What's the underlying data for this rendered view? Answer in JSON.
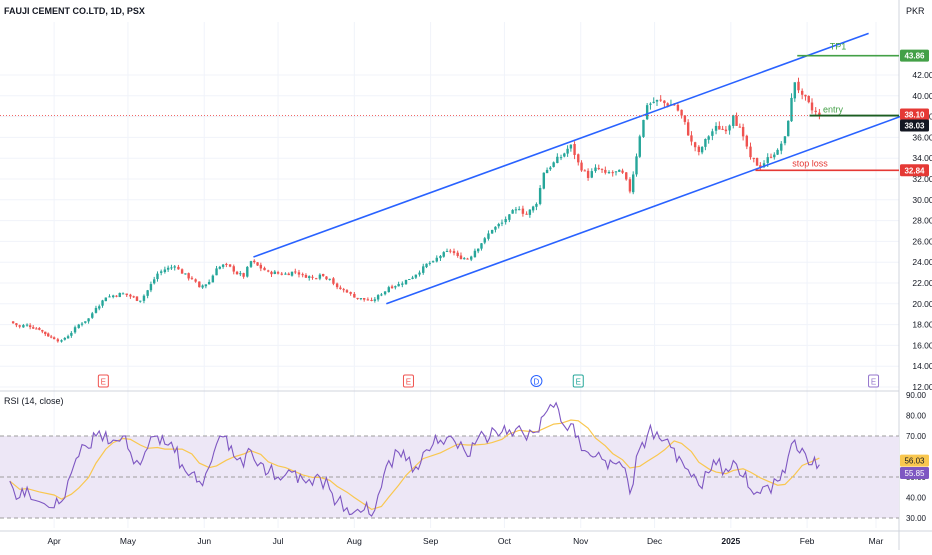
{
  "header": {
    "symbol_line": "FAUJI CEMENT CO.LTD, 1D, PSX",
    "currency": "PKR"
  },
  "rsi_panel": {
    "label": "RSI (14, close)"
  },
  "colors": {
    "up": "#26a69a",
    "down": "#ef5350",
    "channel": "#2962ff",
    "tp": "#43a047",
    "stop": "#e53935",
    "entry_line": "#1b5e20",
    "rsi_line": "#7e57c2",
    "rsi_ma": "#f9c74f",
    "rsi_band": "#ede7f6",
    "grid": "#f0f3fa",
    "axis_text": "#131722"
  },
  "chart_data": [
    {
      "type": "candlestick",
      "title": "FAUJI CEMENT CO.LTD, 1D, PSX",
      "y_unit": "PKR",
      "ylim": [
        12,
        46
      ],
      "y_ticks": [
        12,
        14,
        16,
        18,
        20,
        22,
        24,
        26,
        28,
        30,
        32,
        34,
        36,
        38,
        40,
        42
      ],
      "x_ticks": [
        "Apr",
        "May",
        "Jun",
        "Jul",
        "Aug",
        "Sep",
        "Oct",
        "Nov",
        "Dec",
        "2025",
        "Feb",
        "Mar"
      ],
      "price_approx": [
        [
          "2024-03-14",
          18.3
        ],
        [
          "2024-03-18",
          17.8
        ],
        [
          "2024-03-21",
          18.0
        ],
        [
          "2024-03-26",
          17.5
        ],
        [
          "2024-04-01",
          16.6
        ],
        [
          "2024-04-04",
          16.5
        ],
        [
          "2024-04-08",
          17.2
        ],
        [
          "2024-04-11",
          18.0
        ],
        [
          "2024-04-15",
          18.6
        ],
        [
          "2024-04-18",
          19.6
        ],
        [
          "2024-04-22",
          20.6
        ],
        [
          "2024-04-25",
          20.8
        ],
        [
          "2024-04-29",
          21.0
        ],
        [
          "2024-05-02",
          20.7
        ],
        [
          "2024-05-06",
          20.3
        ],
        [
          "2024-05-09",
          21.3
        ],
        [
          "2024-05-13",
          22.9
        ],
        [
          "2024-05-16",
          23.3
        ],
        [
          "2024-05-20",
          23.6
        ],
        [
          "2024-05-23",
          22.9
        ],
        [
          "2024-05-27",
          22.4
        ],
        [
          "2024-05-30",
          21.6
        ],
        [
          "2024-06-03",
          22.1
        ],
        [
          "2024-06-06",
          23.4
        ],
        [
          "2024-06-10",
          23.8
        ],
        [
          "2024-06-13",
          23.1
        ],
        [
          "2024-06-17",
          22.6
        ],
        [
          "2024-06-20",
          24.1
        ],
        [
          "2024-06-24",
          23.4
        ],
        [
          "2024-06-27",
          23.1
        ],
        [
          "2024-07-01",
          22.9
        ],
        [
          "2024-07-04",
          22.9
        ],
        [
          "2024-07-08",
          23.1
        ],
        [
          "2024-07-11",
          22.8
        ],
        [
          "2024-07-15",
          22.5
        ],
        [
          "2024-07-18",
          22.8
        ],
        [
          "2024-07-22",
          22.4
        ],
        [
          "2024-07-25",
          21.6
        ],
        [
          "2024-07-29",
          21.1
        ],
        [
          "2024-08-01",
          20.6
        ],
        [
          "2024-08-05",
          20.4
        ],
        [
          "2024-08-08",
          20.3
        ],
        [
          "2024-08-12",
          20.9
        ],
        [
          "2024-08-15",
          21.6
        ],
        [
          "2024-08-19",
          21.9
        ],
        [
          "2024-08-22",
          22.3
        ],
        [
          "2024-08-26",
          22.8
        ],
        [
          "2024-08-29",
          23.6
        ],
        [
          "2024-09-02",
          24.1
        ],
        [
          "2024-09-05",
          24.6
        ],
        [
          "2024-09-09",
          25.1
        ],
        [
          "2024-09-12",
          24.6
        ],
        [
          "2024-09-16",
          24.3
        ],
        [
          "2024-09-19",
          25.1
        ],
        [
          "2024-09-23",
          26.3
        ],
        [
          "2024-09-26",
          27.1
        ],
        [
          "2024-09-30",
          27.8
        ],
        [
          "2024-10-03",
          28.6
        ],
        [
          "2024-10-07",
          29.1
        ],
        [
          "2024-10-10",
          28.6
        ],
        [
          "2024-10-14",
          29.6
        ],
        [
          "2024-10-17",
          32.6
        ],
        [
          "2024-10-21",
          33.6
        ],
        [
          "2024-10-24",
          34.1
        ],
        [
          "2024-10-28",
          35.3
        ],
        [
          "2024-10-31",
          33.6
        ],
        [
          "2024-11-04",
          32.1
        ],
        [
          "2024-11-07",
          33.1
        ],
        [
          "2024-11-11",
          32.6
        ],
        [
          "2024-11-14",
          32.6
        ],
        [
          "2024-11-18",
          32.6
        ],
        [
          "2024-11-21",
          30.8
        ],
        [
          "2024-11-25",
          36.1
        ],
        [
          "2024-11-28",
          39.1
        ],
        [
          "2024-12-02",
          39.6
        ],
        [
          "2024-12-05",
          39.3
        ],
        [
          "2024-12-09",
          39.1
        ],
        [
          "2024-12-12",
          38.1
        ],
        [
          "2024-12-16",
          35.6
        ],
        [
          "2024-12-19",
          34.6
        ],
        [
          "2024-12-23",
          36.1
        ],
        [
          "2024-12-26",
          37.1
        ],
        [
          "2024-12-30",
          36.6
        ],
        [
          "2025-01-02",
          38.1
        ],
        [
          "2025-01-06",
          36.1
        ],
        [
          "2025-01-09",
          34.1
        ],
        [
          "2025-01-13",
          33.1
        ],
        [
          "2025-01-16",
          34.1
        ],
        [
          "2025-01-20",
          34.8
        ],
        [
          "2025-01-23",
          36.1
        ],
        [
          "2025-01-27",
          41.3
        ],
        [
          "2025-01-30",
          40.1
        ],
        [
          "2025-02-03",
          38.6
        ],
        [
          "2025-02-06",
          38.1
        ]
      ],
      "annotations": [
        {
          "text": "TP1",
          "value": 43.86
        },
        {
          "text": "entry",
          "value": 38.1
        },
        {
          "text": "stop loss",
          "value": 32.84
        }
      ],
      "price_labels": [
        43.86,
        38.1,
        38.03,
        32.84
      ],
      "event_markers": [
        "E",
        "E",
        "D",
        "E",
        "E"
      ]
    },
    {
      "type": "line",
      "title": "RSI (14, close)",
      "ylim": [
        26,
        92
      ],
      "y_ticks": [
        30,
        40,
        50,
        60,
        70,
        80,
        90
      ],
      "y_tick_labels": [
        "30.00",
        "40.00",
        "50.00",
        "60.00",
        "70.00",
        "80.00",
        "90.00"
      ],
      "bands": [
        30,
        50,
        70
      ],
      "value_labels": [
        "56.03",
        "55.85"
      ],
      "rsi_approx": [
        [
          "2024-03-14",
          48
        ],
        [
          "2024-03-18",
          40
        ],
        [
          "2024-03-21",
          45
        ],
        [
          "2024-03-26",
          38
        ],
        [
          "2024-04-01",
          35
        ],
        [
          "2024-04-04",
          38
        ],
        [
          "2024-04-08",
          52
        ],
        [
          "2024-04-11",
          60
        ],
        [
          "2024-04-15",
          64
        ],
        [
          "2024-04-18",
          70
        ],
        [
          "2024-04-22",
          72
        ],
        [
          "2024-04-25",
          68
        ],
        [
          "2024-04-29",
          70
        ],
        [
          "2024-05-02",
          62
        ],
        [
          "2024-05-06",
          56
        ],
        [
          "2024-05-09",
          64
        ],
        [
          "2024-05-13",
          70
        ],
        [
          "2024-05-16",
          66
        ],
        [
          "2024-05-20",
          62
        ],
        [
          "2024-05-23",
          56
        ],
        [
          "2024-05-27",
          52
        ],
        [
          "2024-05-30",
          48
        ],
        [
          "2024-06-03",
          55
        ],
        [
          "2024-06-06",
          66
        ],
        [
          "2024-06-10",
          70
        ],
        [
          "2024-06-13",
          60
        ],
        [
          "2024-06-17",
          55
        ],
        [
          "2024-06-20",
          63
        ],
        [
          "2024-06-24",
          57
        ],
        [
          "2024-06-27",
          52
        ],
        [
          "2024-07-01",
          50
        ],
        [
          "2024-07-04",
          51
        ],
        [
          "2024-07-08",
          53
        ],
        [
          "2024-07-11",
          49
        ],
        [
          "2024-07-15",
          46
        ],
        [
          "2024-07-18",
          50
        ],
        [
          "2024-07-22",
          44
        ],
        [
          "2024-07-25",
          38
        ],
        [
          "2024-07-29",
          35
        ],
        [
          "2024-08-01",
          33
        ],
        [
          "2024-08-05",
          34
        ],
        [
          "2024-08-08",
          31
        ],
        [
          "2024-08-12",
          45
        ],
        [
          "2024-08-15",
          58
        ],
        [
          "2024-08-19",
          62
        ],
        [
          "2024-08-22",
          58
        ],
        [
          "2024-08-26",
          55
        ],
        [
          "2024-08-29",
          62
        ],
        [
          "2024-09-02",
          66
        ],
        [
          "2024-09-05",
          68
        ],
        [
          "2024-09-09",
          70
        ],
        [
          "2024-09-12",
          64
        ],
        [
          "2024-09-16",
          60
        ],
        [
          "2024-09-19",
          66
        ],
        [
          "2024-09-23",
          70
        ],
        [
          "2024-09-26",
          74
        ],
        [
          "2024-09-30",
          72
        ],
        [
          "2024-10-03",
          73
        ],
        [
          "2024-10-07",
          75
        ],
        [
          "2024-10-10",
          68
        ],
        [
          "2024-10-14",
          72
        ],
        [
          "2024-10-17",
          80
        ],
        [
          "2024-10-21",
          84
        ],
        [
          "2024-10-24",
          77
        ],
        [
          "2024-10-28",
          76
        ],
        [
          "2024-10-31",
          70
        ],
        [
          "2024-11-04",
          62
        ],
        [
          "2024-11-07",
          60
        ],
        [
          "2024-11-11",
          58
        ],
        [
          "2024-11-14",
          57
        ],
        [
          "2024-11-18",
          55
        ],
        [
          "2024-11-21",
          42
        ],
        [
          "2024-11-25",
          64
        ],
        [
          "2024-11-28",
          70
        ],
        [
          "2024-12-02",
          72
        ],
        [
          "2024-12-05",
          68
        ],
        [
          "2024-12-09",
          64
        ],
        [
          "2024-12-12",
          58
        ],
        [
          "2024-12-16",
          50
        ],
        [
          "2024-12-19",
          46
        ],
        [
          "2024-12-23",
          52
        ],
        [
          "2024-12-26",
          56
        ],
        [
          "2024-12-30",
          54
        ],
        [
          "2025-01-02",
          58
        ],
        [
          "2025-01-06",
          50
        ],
        [
          "2025-01-09",
          44
        ],
        [
          "2025-01-13",
          42
        ],
        [
          "2025-01-16",
          46
        ],
        [
          "2025-01-20",
          48
        ],
        [
          "2025-01-23",
          52
        ],
        [
          "2025-01-27",
          68
        ],
        [
          "2025-01-30",
          64
        ],
        [
          "2025-02-03",
          56
        ],
        [
          "2025-02-06",
          56
        ]
      ]
    }
  ]
}
